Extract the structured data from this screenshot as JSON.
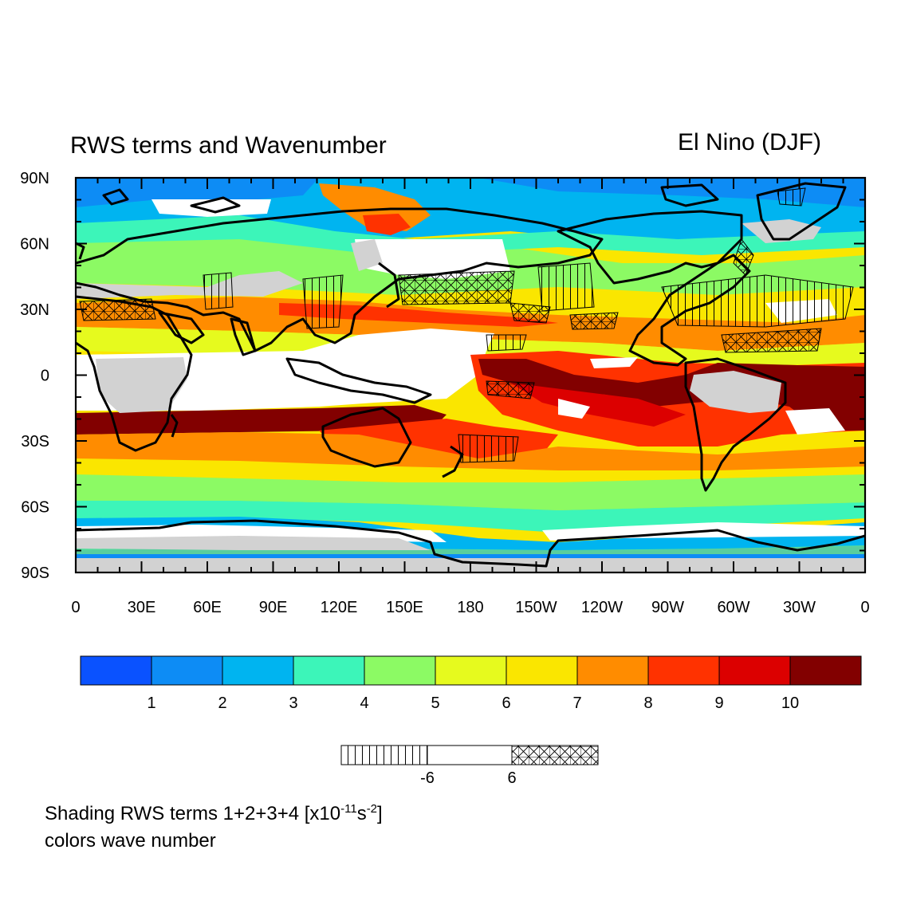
{
  "title_left": "RWS terms and Wavenumber",
  "title_right": "El Nino  (DJF)",
  "lat_ticks": [
    {
      "value": 90,
      "label": "90N"
    },
    {
      "value": 60,
      "label": "60N"
    },
    {
      "value": 30,
      "label": "30N"
    },
    {
      "value": 0,
      "label": "0"
    },
    {
      "value": -30,
      "label": "30S"
    },
    {
      "value": -60,
      "label": "60S"
    },
    {
      "value": -90,
      "label": "90S"
    }
  ],
  "lon_ticks": [
    {
      "value": 0,
      "label": "0"
    },
    {
      "value": 30,
      "label": "30E"
    },
    {
      "value": 60,
      "label": "60E"
    },
    {
      "value": 90,
      "label": "90E"
    },
    {
      "value": 120,
      "label": "120E"
    },
    {
      "value": 150,
      "label": "150E"
    },
    {
      "value": 180,
      "label": "180"
    },
    {
      "value": 210,
      "label": "150W"
    },
    {
      "value": 240,
      "label": "120W"
    },
    {
      "value": 270,
      "label": "90W"
    },
    {
      "value": 300,
      "label": "60W"
    },
    {
      "value": 330,
      "label": "30W"
    },
    {
      "value": 360,
      "label": "0"
    }
  ],
  "color_bar": {
    "colors": [
      "#0a52ff",
      "#0d8cf5",
      "#00b4f0",
      "#3cf5b9",
      "#8cfa64",
      "#e6fa1e",
      "#fae600",
      "#ff8c00",
      "#ff3200",
      "#dc0000",
      "#820000"
    ],
    "labels": [
      "1",
      "2",
      "3",
      "4",
      "5",
      "6",
      "7",
      "8",
      "9",
      "10"
    ]
  },
  "pattern_bar": {
    "segments": [
      "vertical-hatch",
      "none",
      "cross-hatch"
    ],
    "labels": [
      "-6",
      "6"
    ]
  },
  "caption": {
    "line1_text": "Shading RWS terms 1+2+3+4 [x10",
    "line1_sup1": "-11",
    "line1_mid": "s",
    "line1_sup2": "-2",
    "line1_end": "]",
    "line2": "colors wave number"
  },
  "colors": {
    "missing": "#d2d2d2",
    "land_outline": "#000000"
  }
}
